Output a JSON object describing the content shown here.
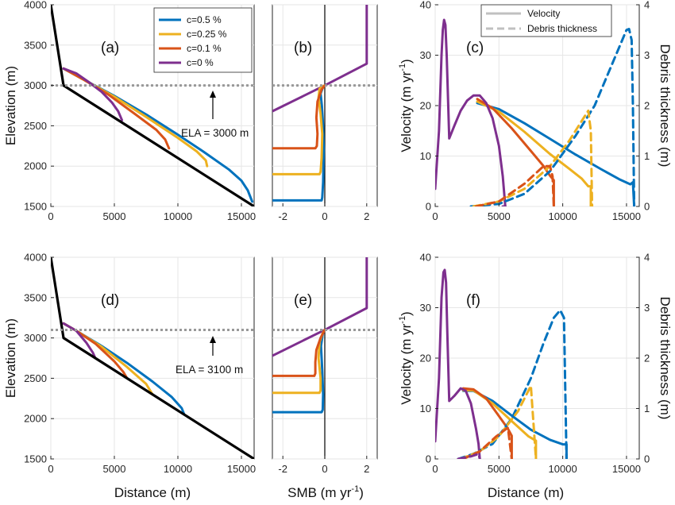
{
  "colors": {
    "c05": "#0072BD",
    "c025": "#EDB120",
    "c01": "#D95319",
    "c0": "#7E2F8E",
    "bed": "#000000",
    "ela": "#999999",
    "grid": "#e6e6e6",
    "legend_gray": "#c0c0c0"
  },
  "legend_top": {
    "series": [
      {
        "key": "c05",
        "label": "c=0.5 %"
      },
      {
        "key": "c025",
        "label": "c=0.25 %"
      },
      {
        "key": "c01",
        "label": "c=0.1 %"
      },
      {
        "key": "c0",
        "label": "c=0 %"
      }
    ]
  },
  "legend_c": {
    "velocity": "Velocity",
    "debris": "Debris thickness"
  },
  "axis_labels": {
    "elevation": "Elevation (m)",
    "distance": "Distance (m)",
    "smb_main": "SMB (m yr",
    "smb_sup": "-1",
    "smb_close": ")",
    "velocity_main": "Velocity (m yr",
    "velocity_sup": "-1",
    "velocity_close": ")",
    "debris": "Debris thickness (m)"
  },
  "panel_labels": {
    "a": "(a)",
    "b": "(b)",
    "c": "(c)",
    "d": "(d)",
    "e": "(e)",
    "f": "(f)"
  },
  "ela_labels": {
    "top": "ELA = 3000 m",
    "bottom": "ELA = 3100 m"
  },
  "chart_data": [
    {
      "id": "a",
      "type": "line",
      "xlabel": "",
      "ylabel": "Elevation (m)",
      "xlim": [
        0,
        16000
      ],
      "ylim": [
        1500,
        4000
      ],
      "xticks": [
        0,
        5000,
        10000,
        15000
      ],
      "yticks": [
        1500,
        2000,
        2500,
        3000,
        3500,
        4000
      ],
      "bed": {
        "x": [
          0,
          1000,
          16000
        ],
        "y": [
          4000,
          3000,
          1500
        ]
      },
      "ela": 3000,
      "series": [
        {
          "key": "c05",
          "x": [
            1000,
            2500,
            5000,
            7500,
            10000,
            12000,
            14000,
            15000,
            15500,
            15850
          ],
          "y": [
            3210,
            3080,
            2870,
            2640,
            2390,
            2180,
            1960,
            1820,
            1700,
            1560
          ]
        },
        {
          "key": "c025",
          "x": [
            1000,
            2500,
            5000,
            7500,
            10000,
            11500,
            12200,
            12300
          ],
          "y": [
            3210,
            3080,
            2860,
            2610,
            2350,
            2180,
            2070,
            2000
          ]
        },
        {
          "key": "c01",
          "x": [
            1000,
            2500,
            4500,
            6500,
            8300,
            9000,
            9300
          ],
          "y": [
            3210,
            3080,
            2890,
            2660,
            2450,
            2330,
            2220
          ]
        },
        {
          "key": "c0",
          "x": [
            1000,
            2000,
            3000,
            4000,
            4800,
            5300,
            5600
          ],
          "y": [
            3210,
            3150,
            3040,
            2920,
            2790,
            2680,
            2570
          ]
        }
      ]
    },
    {
      "id": "b",
      "type": "line",
      "xlabel": "SMB (m yr-1)",
      "ylabel": "",
      "xlim": [
        -2.5,
        2.5
      ],
      "ylim": [
        1500,
        4000
      ],
      "xticks": [
        -2,
        0,
        2
      ],
      "zero_line": true,
      "ela": 3000,
      "series": [
        {
          "key": "c0",
          "x": [
            2,
            2,
            0,
            -2.5
          ],
          "y": [
            4000,
            3270,
            3000,
            2680
          ]
        },
        {
          "key": "c05",
          "x": [
            -2.5,
            -0.15,
            -0.12,
            -0.08,
            -0.05,
            -0.08,
            -0.14,
            -0.2,
            -0.1,
            0
          ],
          "y": [
            1575,
            1575,
            1610,
            1800,
            2200,
            2500,
            2750,
            2900,
            2970,
            3000
          ]
        },
        {
          "key": "c025",
          "x": [
            -2.5,
            -0.25,
            -0.2,
            -0.15,
            -0.12,
            -0.2,
            -0.3,
            -0.25,
            -0.1,
            0
          ],
          "y": [
            1900,
            1900,
            1930,
            2100,
            2400,
            2650,
            2850,
            2960,
            2990,
            3000
          ]
        },
        {
          "key": "c01",
          "x": [
            -2.5,
            -0.45,
            -0.38,
            -0.35,
            -0.4,
            -0.35,
            -0.15,
            0
          ],
          "y": [
            2220,
            2220,
            2250,
            2400,
            2600,
            2800,
            2950,
            3000
          ]
        }
      ]
    },
    {
      "id": "c",
      "type": "line",
      "xlabel": "",
      "ylabel": "Velocity (m yr-1)",
      "y2label": "Debris thickness (m)",
      "xlim": [
        0,
        16000
      ],
      "ylim": [
        0,
        40
      ],
      "y2lim": [
        0,
        4
      ],
      "xticks": [
        0,
        5000,
        10000,
        15000
      ],
      "yticks": [
        0,
        10,
        20,
        30,
        40
      ],
      "y2ticks": [
        0,
        1,
        2,
        3,
        4
      ],
      "series": [
        {
          "key": "c05",
          "kind": "velocity",
          "x": [
            3300,
            5000,
            7000,
            9000,
            11000,
            13000,
            14500,
            15300,
            15500,
            15600
          ],
          "y": [
            20.5,
            19.3,
            16.5,
            13.4,
            10.3,
            7.4,
            5.3,
            4.4,
            4.8,
            0
          ]
        },
        {
          "key": "c025",
          "kind": "velocity",
          "x": [
            3300,
            5000,
            7000,
            9000,
            10500,
            11500,
            12000,
            12200,
            12200
          ],
          "y": [
            20.8,
            18.8,
            14.8,
            10.4,
            7.5,
            5.5,
            4.0,
            4.0,
            0
          ]
        },
        {
          "key": "c01",
          "kind": "velocity",
          "x": [
            3300,
            4500,
            6000,
            7500,
            8500,
            9000,
            9300,
            9300
          ],
          "y": [
            21.3,
            19.5,
            15.5,
            11.0,
            8.0,
            6.1,
            5.2,
            0
          ]
        },
        {
          "key": "c0",
          "kind": "velocity",
          "x": [
            0,
            300,
            500,
            600,
            700,
            800,
            900,
            1100,
            1500,
            2000,
            2500,
            3000,
            3500,
            4000,
            4500,
            5000,
            5300,
            5500
          ],
          "y": [
            3.5,
            15,
            30,
            35,
            37,
            36,
            30,
            13.5,
            16,
            19,
            21,
            22,
            22,
            20.5,
            17.5,
            12,
            6,
            0
          ]
        },
        {
          "key": "c05",
          "kind": "debris",
          "x": [
            2800,
            5000,
            7000,
            9000,
            11000,
            12500,
            13500,
            14500,
            15000,
            15200,
            15400,
            15500,
            15600
          ],
          "y": [
            0,
            0.05,
            0.25,
            0.7,
            1.4,
            2.0,
            2.6,
            3.2,
            3.5,
            3.52,
            3.3,
            2.0,
            0
          ]
        },
        {
          "key": "c025",
          "kind": "debris",
          "x": [
            3000,
            5000,
            7000,
            9000,
            10500,
            11500,
            12000,
            12200,
            12300
          ],
          "y": [
            0,
            0.1,
            0.35,
            0.8,
            1.3,
            1.7,
            1.9,
            1.5,
            0
          ]
        },
        {
          "key": "c01",
          "kind": "debris",
          "x": [
            3200,
            5000,
            7000,
            8500,
            9000,
            9200,
            9300
          ],
          "y": [
            0,
            0.1,
            0.45,
            0.8,
            0.8,
            0.6,
            0
          ]
        },
        {
          "key": "c0",
          "kind": "debris",
          "x": [
            5300,
            5500
          ],
          "y": [
            0,
            0
          ]
        }
      ]
    },
    {
      "id": "d",
      "type": "line",
      "xlabel": "Distance (m)",
      "ylabel": "Elevation (m)",
      "xlim": [
        0,
        16000
      ],
      "ylim": [
        1500,
        4000
      ],
      "xticks": [
        0,
        5000,
        10000,
        15000
      ],
      "yticks": [
        1500,
        2000,
        2500,
        3000,
        3500,
        4000
      ],
      "bed": {
        "x": [
          0,
          1000,
          16000
        ],
        "y": [
          4000,
          3000,
          1500
        ]
      },
      "ela": 3100,
      "series": [
        {
          "key": "c05",
          "x": [
            1000,
            2000,
            4000,
            6000,
            8000,
            9500,
            10300,
            10500
          ],
          "y": [
            3180,
            3090,
            2900,
            2690,
            2460,
            2270,
            2130,
            2050
          ]
        },
        {
          "key": "c025",
          "x": [
            1000,
            2000,
            4000,
            6000,
            7500,
            8000
          ],
          "y": [
            3180,
            3090,
            2890,
            2640,
            2430,
            2300
          ]
        },
        {
          "key": "c01",
          "x": [
            1000,
            2000,
            3500,
            5000,
            5700,
            6000
          ],
          "y": [
            3180,
            3090,
            2930,
            2710,
            2580,
            2500
          ]
        },
        {
          "key": "c0",
          "x": [
            1000,
            2000,
            2800,
            3300,
            3500
          ],
          "y": [
            3180,
            3090,
            2940,
            2820,
            2750
          ]
        }
      ]
    },
    {
      "id": "e",
      "type": "line",
      "xlabel": "SMB (m yr-1)",
      "ylabel": "",
      "xlim": [
        -2.5,
        2.5
      ],
      "ylim": [
        1500,
        4000
      ],
      "xticks": [
        -2,
        0,
        2
      ],
      "zero_line": true,
      "ela": 3100,
      "series": [
        {
          "key": "c0",
          "x": [
            2,
            2,
            0,
            -2.5
          ],
          "y": [
            4000,
            3370,
            3100,
            2780
          ]
        },
        {
          "key": "c05",
          "x": [
            -2.5,
            -0.15,
            -0.1,
            -0.08,
            -0.12,
            -0.18,
            -0.1,
            0
          ],
          "y": [
            2080,
            2080,
            2110,
            2300,
            2600,
            2900,
            3050,
            3100
          ]
        },
        {
          "key": "c025",
          "x": [
            -2.5,
            -0.25,
            -0.2,
            -0.2,
            -0.3,
            -0.25,
            -0.1,
            0
          ],
          "y": [
            2320,
            2320,
            2350,
            2500,
            2750,
            2950,
            3060,
            3100
          ]
        },
        {
          "key": "c01",
          "x": [
            -2.5,
            -0.5,
            -0.45,
            -0.45,
            -0.4,
            -0.2,
            0
          ],
          "y": [
            2530,
            2530,
            2560,
            2700,
            2850,
            3000,
            3100
          ]
        }
      ]
    },
    {
      "id": "f",
      "type": "line",
      "xlabel": "Distance (m)",
      "ylabel": "Velocity (m yr-1)",
      "y2label": "Debris thickness (m)",
      "xlim": [
        0,
        16000
      ],
      "ylim": [
        0,
        40
      ],
      "y2lim": [
        0,
        4
      ],
      "xticks": [
        0,
        5000,
        10000,
        15000
      ],
      "yticks": [
        0,
        10,
        20,
        30,
        40
      ],
      "y2ticks": [
        0,
        1,
        2,
        3,
        4
      ],
      "series": [
        {
          "key": "c05",
          "kind": "velocity",
          "x": [
            2200,
            3000,
            4500,
            6000,
            7500,
            9000,
            10000,
            10300,
            10300
          ],
          "y": [
            13.5,
            13.5,
            11.5,
            8.6,
            5.8,
            3.8,
            2.9,
            2.9,
            0
          ]
        },
        {
          "key": "c025",
          "kind": "velocity",
          "x": [
            2200,
            3000,
            4500,
            6000,
            7300,
            7900,
            7900
          ],
          "y": [
            13.6,
            13.6,
            11.0,
            7.5,
            4.5,
            3.6,
            0
          ]
        },
        {
          "key": "c01",
          "kind": "velocity",
          "x": [
            2200,
            3000,
            4000,
            5000,
            5700,
            6000,
            6000
          ],
          "y": [
            14,
            13.8,
            12.0,
            8.5,
            6.0,
            4.6,
            0
          ]
        },
        {
          "key": "c0",
          "kind": "velocity",
          "x": [
            0,
            300,
            500,
            650,
            750,
            850,
            950,
            1100,
            1500,
            2000,
            2400,
            2800,
            3200,
            3400,
            3500
          ],
          "y": [
            3.5,
            16,
            32,
            37,
            37.5,
            35,
            25,
            11.5,
            12.5,
            14,
            13.5,
            11,
            6,
            3,
            0
          ]
        },
        {
          "key": "c05",
          "kind": "debris",
          "x": [
            1800,
            3000,
            4500,
            6000,
            7500,
            8500,
            9300,
            9800,
            10100,
            10300
          ],
          "y": [
            0,
            0.1,
            0.3,
            0.8,
            1.6,
            2.3,
            2.8,
            2.95,
            2.8,
            0
          ]
        },
        {
          "key": "c025",
          "kind": "debris",
          "x": [
            2000,
            3500,
            5000,
            6500,
            7500,
            7900
          ],
          "y": [
            0,
            0.15,
            0.45,
            0.95,
            1.45,
            0
          ]
        },
        {
          "key": "c01",
          "kind": "debris",
          "x": [
            2200,
            3500,
            4800,
            5700,
            6000
          ],
          "y": [
            0,
            0.15,
            0.45,
            0.62,
            0
          ]
        },
        {
          "key": "c0",
          "kind": "debris",
          "x": [
            1800,
            2800,
            3400,
            3500
          ],
          "y": [
            0,
            0.05,
            0.1,
            0
          ]
        }
      ]
    }
  ]
}
